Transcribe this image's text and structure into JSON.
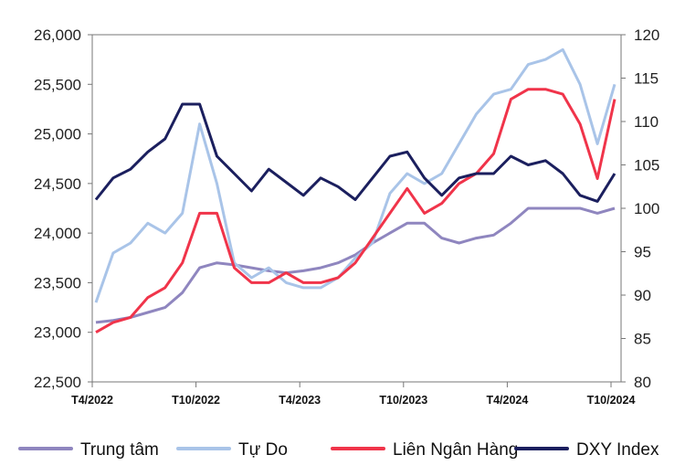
{
  "chart_data": {
    "type": "line",
    "title": "",
    "x": [
      "2022-04",
      "2022-05",
      "2022-06",
      "2022-07",
      "2022-08",
      "2022-09",
      "2022-10",
      "2022-11",
      "2022-12",
      "2023-01",
      "2023-02",
      "2023-03",
      "2023-04",
      "2023-05",
      "2023-06",
      "2023-07",
      "2023-08",
      "2023-09",
      "2023-10",
      "2023-11",
      "2023-12",
      "2024-01",
      "2024-02",
      "2024-03",
      "2024-04",
      "2024-05",
      "2024-06",
      "2024-07",
      "2024-08",
      "2024-09",
      "2024-10"
    ],
    "x_ticks": [
      {
        "at": "2022-04",
        "label": "T4/2022"
      },
      {
        "at": "2022-10",
        "label": "T10/2022"
      },
      {
        "at": "2023-04",
        "label": "T4/2023"
      },
      {
        "at": "2023-10",
        "label": "T10/2023"
      },
      {
        "at": "2024-04",
        "label": "T4/2024"
      },
      {
        "at": "2024-10",
        "label": "T10/2024"
      }
    ],
    "y_left": {
      "range": [
        22500,
        26000
      ],
      "ticks": [
        "22,500",
        "23,000",
        "23,500",
        "24,000",
        "24,500",
        "25,000",
        "25,500",
        "26,000"
      ]
    },
    "y_right": {
      "range": [
        80,
        120
      ],
      "ticks": [
        "80",
        "85",
        "90",
        "95",
        "100",
        "105",
        "110",
        "115",
        "120"
      ]
    },
    "grid": false,
    "legend_position": "bottom",
    "series": [
      {
        "name": "Trung tâm",
        "axis": "left",
        "color": "#8f86bf",
        "values": [
          23100,
          23120,
          23150,
          23200,
          23250,
          23400,
          23650,
          23700,
          23680,
          23650,
          23620,
          23600,
          23620,
          23650,
          23700,
          23780,
          23900,
          24000,
          24100,
          24100,
          23950,
          23900,
          23950,
          23980,
          24100,
          24250,
          24250,
          24250,
          24250,
          24200,
          24250
        ]
      },
      {
        "name": "Tự Do",
        "axis": "left",
        "color": "#a9c4e8",
        "values": [
          23300,
          23800,
          23900,
          24100,
          24000,
          24200,
          25100,
          24500,
          23700,
          23550,
          23650,
          23500,
          23450,
          23450,
          23550,
          23750,
          23900,
          24400,
          24600,
          24500,
          24600,
          24900,
          25200,
          25400,
          25450,
          25700,
          25750,
          25850,
          25500,
          24900,
          25500
        ]
      },
      {
        "name": "Liên Ngân Hàng",
        "axis": "left",
        "color": "#f0344a",
        "values": [
          23000,
          23100,
          23150,
          23350,
          23450,
          23700,
          24200,
          24200,
          23650,
          23500,
          23500,
          23600,
          23500,
          23500,
          23550,
          23700,
          23950,
          24200,
          24450,
          24200,
          24300,
          24500,
          24600,
          24800,
          25350,
          25450,
          25450,
          25400,
          25100,
          24550,
          25350
        ]
      },
      {
        "name": "DXY Index",
        "axis": "right",
        "color": "#1b1f5e",
        "values": [
          101,
          103.5,
          104.5,
          106.5,
          108,
          112,
          112,
          106,
          104,
          102,
          104.5,
          103,
          101.5,
          103.5,
          102.5,
          101,
          103.5,
          106,
          106.5,
          103.5,
          101.5,
          103.5,
          104,
          104,
          106,
          105,
          105.5,
          104,
          101.5,
          100.8,
          104
        ]
      }
    ]
  }
}
